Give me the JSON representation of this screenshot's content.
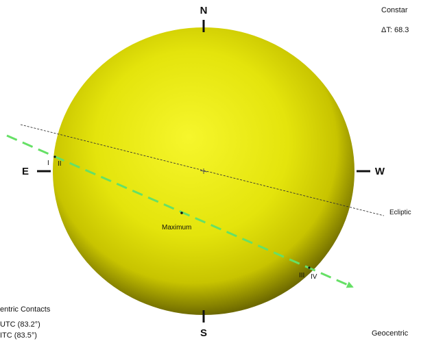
{
  "compass": {
    "north": "N",
    "south": "S",
    "east": "E",
    "west": "W"
  },
  "labels": {
    "ecliptic": "Ecliptic",
    "maximum": "Maximum",
    "contact_1": "I",
    "contact_2": "II",
    "contact_3": "III",
    "contact_4": "IV"
  },
  "top_right": {
    "line_1": "Constar",
    "line_2": "ΔT: 68.3"
  },
  "bottom_left": {
    "heading": "entric Contacts",
    "row_1": "UTC (83.2°)",
    "row_2": "ITC (83.5°)"
  },
  "bottom_right": {
    "heading": "Geocentric"
  },
  "colors": {
    "sun_center": "#f4f42a",
    "sun_mid": "#e2e20a",
    "sun_edge": "#7a7600",
    "path": "#66e066",
    "ecliptic": "#333333"
  }
}
